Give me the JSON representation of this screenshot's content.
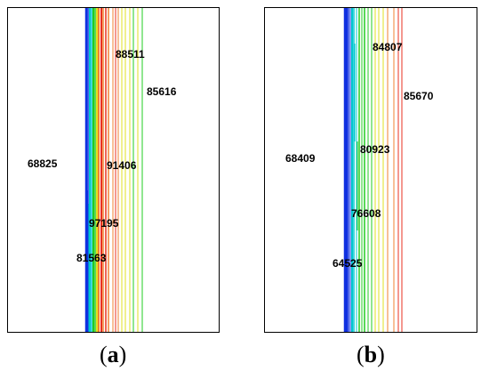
{
  "panels": [
    {
      "caption_letter": "a",
      "labels": [
        "88511",
        "85616",
        "68825",
        "91406",
        "97195",
        "81563"
      ]
    },
    {
      "caption_letter": "b",
      "labels": [
        "84807",
        "85670",
        "68409",
        "80923",
        "76608",
        "64525"
      ]
    }
  ],
  "colors": {
    "blue": "#1030e0",
    "cyan": "#00c8d0",
    "green": "#22cc22",
    "yellow": "#e0e020",
    "orange": "#f08030",
    "red": "#e83020"
  }
}
